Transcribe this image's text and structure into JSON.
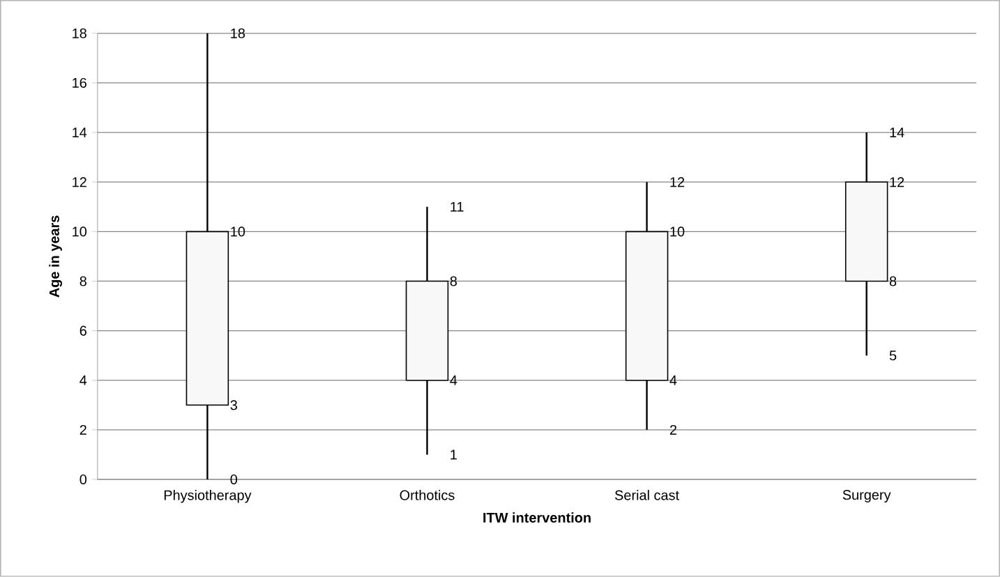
{
  "chart_data": {
    "type": "candlestick",
    "xlabel": "ITW intervention",
    "ylabel": "Age in years",
    "categories": [
      "Physiotherapy",
      "Orthotics",
      "Serial cast",
      "Surgery"
    ],
    "ohlc": [
      [
        3,
        18,
        0,
        10
      ],
      [
        4,
        11,
        1,
        8
      ],
      [
        4,
        12,
        2,
        10
      ],
      [
        8,
        14,
        5,
        12
      ]
    ],
    "color": "#f8f8f8",
    "ylim": [
      0,
      18
    ],
    "yticks": [
      0,
      2,
      4,
      6,
      8,
      10,
      12,
      14,
      16,
      18
    ],
    "grid": "y",
    "annotations": [
      {
        "text": "3",
        "x": "Physiotherapy",
        "y": 3
      },
      {
        "text": "18",
        "x": "Physiotherapy",
        "y": 18
      },
      {
        "text": "0",
        "x": "Physiotherapy",
        "y": 0
      },
      {
        "text": "10",
        "x": "Physiotherapy",
        "y": 10
      },
      {
        "text": "4",
        "x": "Orthotics",
        "y": 4
      },
      {
        "text": "11",
        "x": "Orthotics",
        "y": 11
      },
      {
        "text": "1",
        "x": "Orthotics",
        "y": 1
      },
      {
        "text": "8",
        "x": "Orthotics",
        "y": 8
      },
      {
        "text": "4",
        "x": "Serial cast",
        "y": 4
      },
      {
        "text": "12",
        "x": "Serial cast",
        "y": 12
      },
      {
        "text": "2",
        "x": "Serial cast",
        "y": 2
      },
      {
        "text": "10",
        "x": "Serial cast",
        "y": 10
      },
      {
        "text": "8",
        "x": "Surgery",
        "y": 8
      },
      {
        "text": "14",
        "x": "Surgery",
        "y": 14
      },
      {
        "text": "5",
        "x": "Surgery",
        "y": 5
      },
      {
        "text": "12",
        "x": "Surgery",
        "y": 12
      }
    ]
  }
}
